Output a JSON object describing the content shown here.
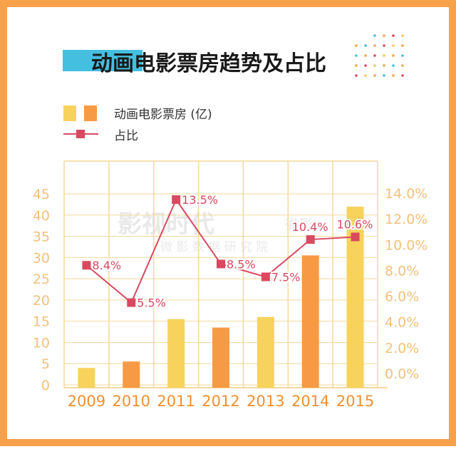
{
  "title": "动画电影票房趋势及占比",
  "legend": {
    "bars_label": "动画电影票房 (亿)",
    "line_label": "占比"
  },
  "colors": {
    "frame": "#F7A24A",
    "title_accent": "#44BFE0",
    "bar_light": "#F7D35E",
    "bar_dark": "#F79A45",
    "line": "#D9495F",
    "axis_text": "#F5C07A",
    "x_label": "#F0902F",
    "grid": "#F6D99A"
  },
  "watermark": {
    "line1": "影视时代",
    "line2": "微 影 数 据 研 究 院",
    "tag": "微影"
  },
  "chart_data": {
    "type": "bar",
    "categories": [
      "2009",
      "2010",
      "2011",
      "2012",
      "2013",
      "2014",
      "2015"
    ],
    "series": [
      {
        "name": "动画电影票房 (亿)",
        "type": "bar",
        "axis": "left",
        "values": [
          4,
          5.5,
          15.5,
          13.5,
          16,
          30.5,
          42
        ]
      },
      {
        "name": "占比",
        "type": "line",
        "axis": "right",
        "values": [
          8.4,
          5.5,
          13.5,
          8.5,
          7.5,
          10.4,
          10.6
        ],
        "labels": [
          "8.4%",
          "5.5%",
          "13.5%",
          "8.5%",
          "7.5%",
          "10.4%",
          "10.6%"
        ]
      }
    ],
    "left_axis": {
      "ticks": [
        "0",
        "5",
        "10",
        "15",
        "20",
        "25",
        "30",
        "35",
        "40",
        "45"
      ],
      "ylim": [
        0,
        45
      ]
    },
    "right_axis": {
      "ticks": [
        "0.0%",
        "2.0%",
        "4.0%",
        "6.0%",
        "8.0%",
        "10.0%",
        "12.0%",
        "14.0%"
      ],
      "ylim": [
        0,
        14
      ]
    },
    "bar_colors": [
      "light",
      "dark",
      "light",
      "dark",
      "light",
      "dark",
      "light"
    ],
    "grid": true
  }
}
